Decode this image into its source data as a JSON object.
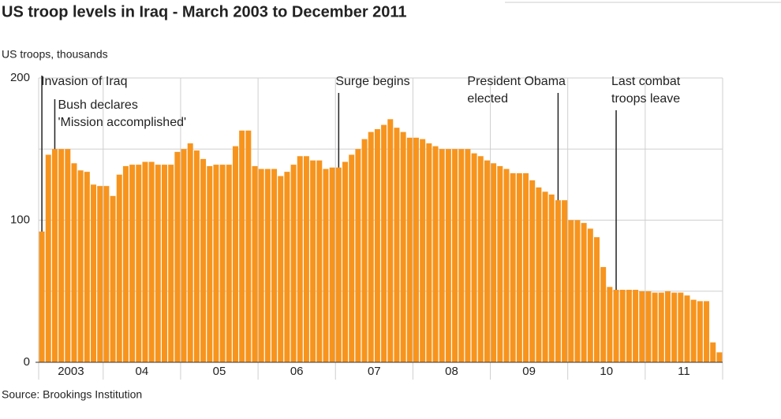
{
  "chart_data": {
    "type": "bar",
    "title": "US troop levels in Iraq - March 2003 to December 2011",
    "y_label": "US troops, thousands",
    "source": "Source: Brookings Institution",
    "color": "#f7941d",
    "ylim": [
      0,
      200
    ],
    "yticks": [
      0,
      100,
      200
    ],
    "grid_lines": [
      0,
      50,
      100,
      150,
      200
    ],
    "grid": true,
    "categories": [
      "2003",
      null,
      null,
      null,
      null,
      null,
      null,
      null,
      null,
      null,
      "04",
      null,
      null,
      null,
      null,
      null,
      null,
      null,
      null,
      null,
      null,
      null,
      "05",
      null,
      null,
      null,
      null,
      null,
      null,
      null,
      null,
      null,
      null,
      null,
      "06",
      null,
      null,
      null,
      null,
      null,
      null,
      null,
      null,
      null,
      null,
      null,
      "07",
      null,
      null,
      null,
      null,
      null,
      null,
      null,
      null,
      null,
      null,
      null,
      "08",
      null,
      null,
      null,
      null,
      null,
      null,
      null,
      null,
      null,
      null,
      null,
      "09",
      null,
      null,
      null,
      null,
      null,
      null,
      null,
      null,
      null,
      null,
      null,
      "10",
      null,
      null,
      null,
      null,
      null,
      null,
      null,
      null,
      null,
      null,
      null,
      "11",
      null,
      null,
      null,
      null,
      null,
      null,
      null,
      null,
      null,
      null,
      null
    ],
    "values": [
      92,
      146,
      150,
      150,
      150,
      140,
      135,
      134,
      125,
      124,
      124,
      117,
      132,
      138,
      139,
      139,
      141,
      141,
      139,
      139,
      139,
      148,
      150,
      154,
      149,
      143,
      138,
      139,
      139,
      139,
      152,
      163,
      163,
      138,
      136,
      136,
      136,
      131,
      134,
      139,
      145,
      145,
      142,
      142,
      136,
      137,
      137,
      141,
      146,
      150,
      157,
      162,
      164,
      167,
      171,
      165,
      162,
      158,
      158,
      157,
      154,
      152,
      150,
      150,
      150,
      150,
      150,
      147,
      145,
      142,
      140,
      138,
      136,
      133,
      133,
      133,
      128,
      123,
      120,
      118,
      114,
      114,
      100,
      100,
      98,
      94,
      88,
      67,
      53,
      51,
      51,
      51,
      51,
      50,
      50,
      49,
      49,
      50,
      49,
      49,
      47,
      44,
      43,
      43,
      14,
      7
    ],
    "annotations": [
      {
        "lines": [
          "Invasion of Iraq"
        ],
        "at": 0
      },
      {
        "lines": [
          "Bush declares",
          "'Mission accomplished'"
        ],
        "at": 2
      },
      {
        "lines": [
          "Surge begins"
        ],
        "at": 46
      },
      {
        "lines": [
          "President Obama",
          "elected"
        ],
        "at": 80
      },
      {
        "lines": [
          "Last combat",
          "troops leave"
        ],
        "at": 89
      }
    ]
  }
}
